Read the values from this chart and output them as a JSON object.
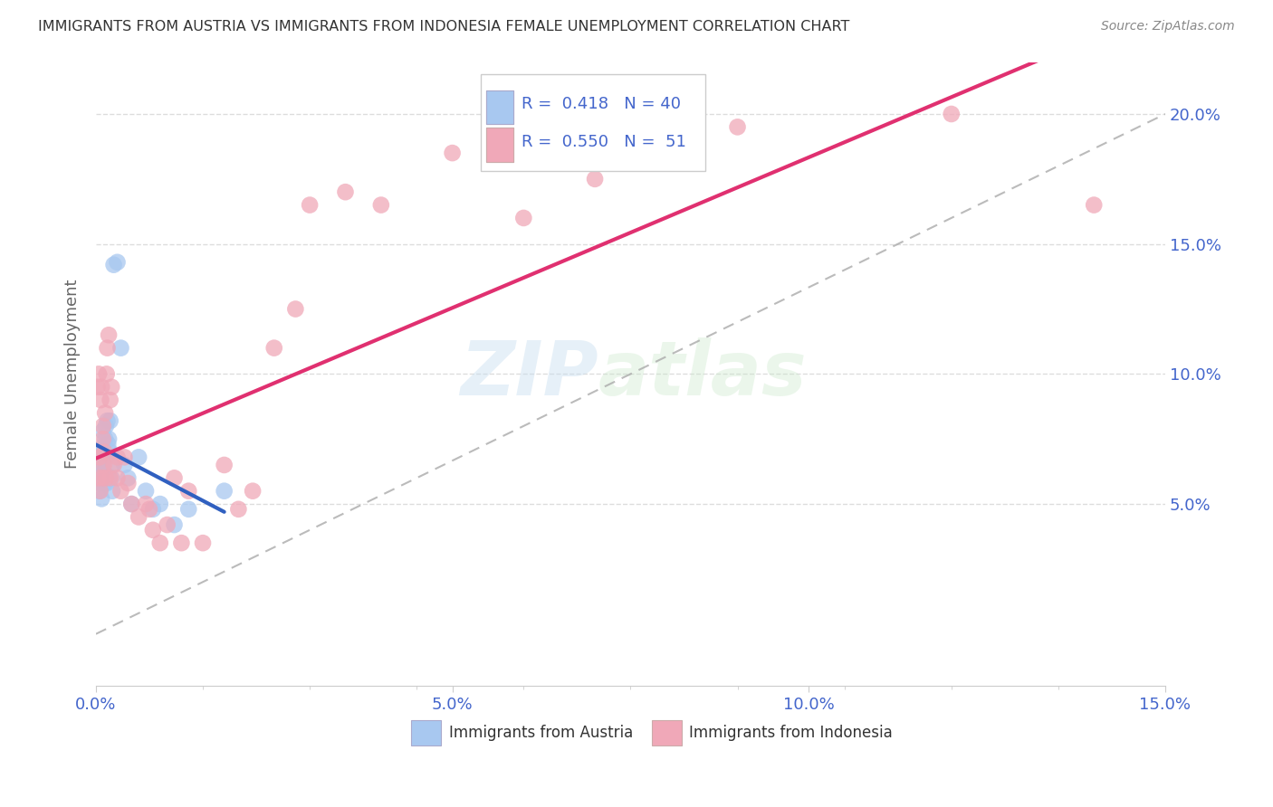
{
  "title": "IMMIGRANTS FROM AUSTRIA VS IMMIGRANTS FROM INDONESIA FEMALE UNEMPLOYMENT CORRELATION CHART",
  "source": "Source: ZipAtlas.com",
  "ylabel": "Female Unemployment",
  "xlim": [
    0.0,
    0.15
  ],
  "ylim": [
    -0.02,
    0.22
  ],
  "xticks": [
    0.0,
    0.015,
    0.03,
    0.045,
    0.06,
    0.075,
    0.09,
    0.105,
    0.12,
    0.135,
    0.15
  ],
  "yticks": [
    0.05,
    0.1,
    0.15,
    0.2
  ],
  "austria_R": "0.418",
  "austria_N": "40",
  "indonesia_R": "0.550",
  "indonesia_N": "51",
  "austria_color": "#a8c8f0",
  "austria_line_color": "#3060c0",
  "indonesia_color": "#f0a8b8",
  "indonesia_line_color": "#e03070",
  "austria_scatter_x": [
    0.0002,
    0.0003,
    0.0004,
    0.0005,
    0.0005,
    0.0006,
    0.0007,
    0.0008,
    0.0008,
    0.0009,
    0.001,
    0.001,
    0.0012,
    0.0012,
    0.0013,
    0.0014,
    0.0015,
    0.0015,
    0.0016,
    0.0017,
    0.0018,
    0.0018,
    0.002,
    0.002,
    0.0022,
    0.0023,
    0.0023,
    0.0025,
    0.003,
    0.0035,
    0.004,
    0.0045,
    0.005,
    0.006,
    0.007,
    0.008,
    0.009,
    0.011,
    0.013,
    0.018
  ],
  "austria_scatter_y": [
    0.063,
    0.068,
    0.058,
    0.055,
    0.07,
    0.06,
    0.065,
    0.052,
    0.062,
    0.067,
    0.072,
    0.078,
    0.062,
    0.058,
    0.075,
    0.08,
    0.068,
    0.058,
    0.082,
    0.073,
    0.06,
    0.075,
    0.07,
    0.082,
    0.06,
    0.065,
    0.055,
    0.142,
    0.143,
    0.11,
    0.065,
    0.06,
    0.05,
    0.068,
    0.055,
    0.048,
    0.05,
    0.042,
    0.048,
    0.055
  ],
  "indonesia_scatter_x": [
    0.0002,
    0.0003,
    0.0004,
    0.0005,
    0.0006,
    0.0007,
    0.0008,
    0.0009,
    0.001,
    0.001,
    0.0011,
    0.0012,
    0.0013,
    0.0014,
    0.0015,
    0.0016,
    0.0018,
    0.002,
    0.002,
    0.0022,
    0.0025,
    0.003,
    0.003,
    0.0035,
    0.004,
    0.0045,
    0.005,
    0.006,
    0.007,
    0.0075,
    0.008,
    0.009,
    0.01,
    0.011,
    0.012,
    0.013,
    0.015,
    0.018,
    0.02,
    0.022,
    0.025,
    0.028,
    0.03,
    0.035,
    0.04,
    0.05,
    0.06,
    0.07,
    0.09,
    0.12,
    0.14
  ],
  "indonesia_scatter_y": [
    0.095,
    0.06,
    0.1,
    0.068,
    0.055,
    0.09,
    0.095,
    0.06,
    0.075,
    0.08,
    0.065,
    0.07,
    0.085,
    0.06,
    0.1,
    0.11,
    0.115,
    0.09,
    0.06,
    0.095,
    0.065,
    0.06,
    0.068,
    0.055,
    0.068,
    0.058,
    0.05,
    0.045,
    0.05,
    0.048,
    0.04,
    0.035,
    0.042,
    0.06,
    0.035,
    0.055,
    0.035,
    0.065,
    0.048,
    0.055,
    0.11,
    0.125,
    0.165,
    0.17,
    0.165,
    0.185,
    0.16,
    0.175,
    0.195,
    0.2,
    0.165
  ],
  "watermark_zip": "ZIP",
  "watermark_atlas": "atlas",
  "background_color": "#ffffff",
  "grid_color": "#dddddd",
  "title_color": "#333333",
  "tick_label_color": "#4466cc"
}
